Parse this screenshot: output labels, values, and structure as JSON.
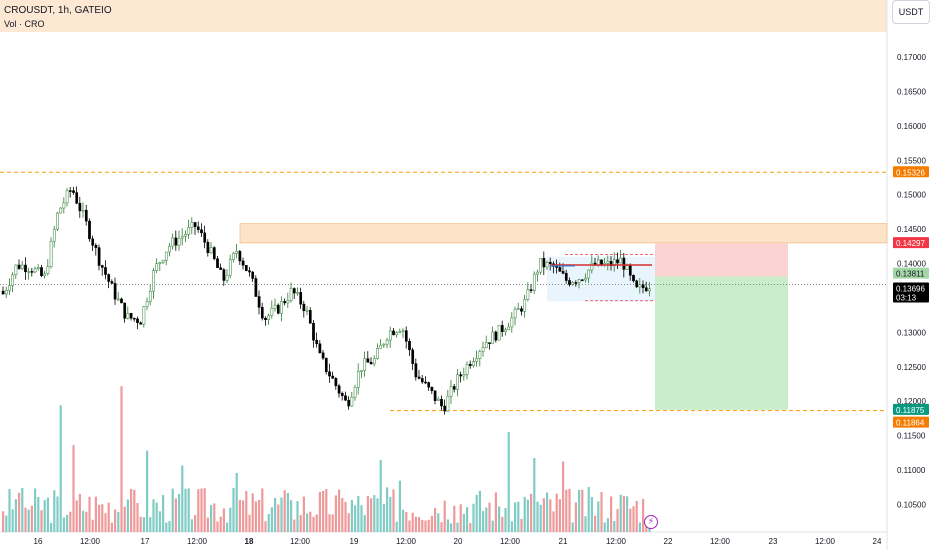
{
  "header": {
    "symbol_line": "CROUSDT, 1h, GATEIO",
    "volume_label": "Vol · CRO",
    "currency": "USDT"
  },
  "icons": {
    "lightning": "lightning-icon"
  },
  "colors": {
    "up": "#26a69a",
    "up_candle_fill": "#ffffff",
    "up_candle_border": "#2e7d32",
    "down": "#000000",
    "vol_up": "#80cbc4",
    "vol_down": "#ef9a9a",
    "orange": "#ff9800",
    "resistance_zone": "#fde3c8",
    "stop_zone": "#fbd3d3",
    "target_zone": "#c9ecc9",
    "red_tag": "#f23645",
    "green_tag": "#089981",
    "orange_tag": "#f57c00",
    "price_tag": "#000000"
  },
  "chart_data": {
    "type": "candlestick",
    "symbol": "CROUSDT",
    "timeframe": "1h",
    "exchange": "GATEIO",
    "ylim": [
      0.101,
      0.1735
    ],
    "y_ticks": [
      "0.17000",
      "0.16500",
      "0.16000",
      "0.15500",
      "0.15000",
      "0.14500",
      "0.14000",
      "0.13500",
      "0.13000",
      "0.12500",
      "0.12000",
      "0.11500",
      "0.11000",
      "0.10500"
    ],
    "x_ticks": [
      "16",
      "12:00",
      "17",
      "12:00",
      "18",
      "12:00",
      "19",
      "12:00",
      "20",
      "12:00",
      "21",
      "12:00",
      "22",
      "12:00",
      "23",
      "12:00",
      "24"
    ],
    "x_tick_bold": "18",
    "path_points": [
      [
        0.136,
        0.1356
      ],
      [
        0.139,
        0.1398
      ],
      [
        0.141,
        0.1395
      ],
      [
        0.141,
        0.1378
      ],
      [
        0.143,
        0.1475
      ],
      [
        0.143,
        0.151
      ],
      [
        0.15,
        0.146
      ],
      [
        0.143,
        0.1405
      ],
      [
        0.14,
        0.136
      ],
      [
        0.133,
        0.1322
      ],
      [
        0.129,
        0.1318
      ],
      [
        0.1365,
        0.139
      ],
      [
        0.139,
        0.1425
      ],
      [
        0.143,
        0.144
      ],
      [
        0.1425,
        0.1455
      ],
      [
        0.144,
        0.142
      ],
      [
        0.142,
        0.1375
      ],
      [
        0.14,
        0.142
      ],
      [
        0.141,
        0.138
      ],
      [
        0.137,
        0.132
      ],
      [
        0.132,
        0.1335
      ],
      [
        0.134,
        0.136
      ],
      [
        0.1355,
        0.1335
      ],
      [
        0.133,
        0.1265
      ],
      [
        0.128,
        0.123
      ],
      [
        0.121,
        0.1195
      ],
      [
        0.122,
        0.125
      ],
      [
        0.125,
        0.126
      ],
      [
        0.1265,
        0.13
      ],
      [
        0.13,
        0.131
      ],
      [
        0.128,
        0.124
      ],
      [
        0.122,
        0.1215
      ],
      [
        0.121,
        0.119
      ],
      [
        0.121,
        0.123
      ],
      [
        0.124,
        0.126
      ],
      [
        0.125,
        0.1285
      ],
      [
        0.126,
        0.13
      ],
      [
        0.129,
        0.132
      ],
      [
        0.131,
        0.1345
      ],
      [
        0.1375,
        0.14
      ],
      [
        0.1405,
        0.1395
      ],
      [
        0.139,
        0.1375
      ],
      [
        0.1375,
        0.138
      ],
      [
        0.1395,
        0.1398
      ],
      [
        0.14,
        0.1398
      ],
      [
        0.1398,
        0.1405
      ],
      [
        0.137,
        0.136
      ],
      [
        0.136,
        0.137
      ]
    ],
    "volume_ylim": [
      0,
      0.0142
    ],
    "horizontal_lines": [
      {
        "price": 0.15326,
        "label": "0.15326",
        "style": "dashed"
      },
      {
        "price": 0.11864,
        "label": "0.11864",
        "style": "dashed"
      }
    ],
    "resistance_zone": [
      0.143,
      0.1458
    ],
    "position": {
      "entry": 0.13811,
      "stop": 0.14297,
      "target": 0.11875,
      "range_box_high": 0.141,
      "range_box_low": 0.1345,
      "red_line": 0.1398
    },
    "price_labels": [
      {
        "value": "0.15326",
        "kind": "orange"
      },
      {
        "value": "0.14297",
        "kind": "red"
      },
      {
        "value": "0.13811",
        "kind": "light-green"
      },
      {
        "value": "0.13696",
        "kind": "current",
        "countdown": "03:13"
      },
      {
        "value": "0.11875",
        "kind": "green"
      },
      {
        "value": "0.11864",
        "kind": "orange"
      }
    ],
    "current_price": 0.13696,
    "countdown": "03:13"
  }
}
